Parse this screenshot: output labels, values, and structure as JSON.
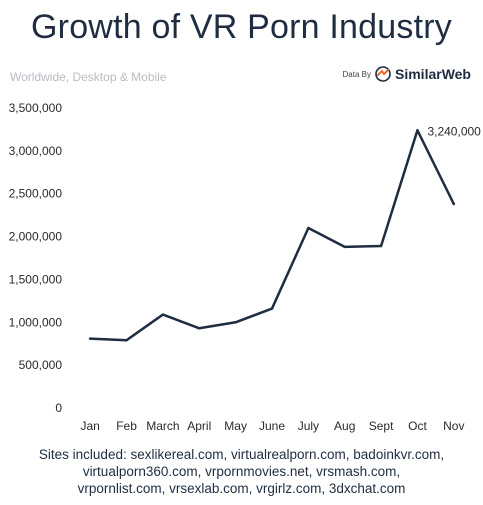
{
  "title": "Growth of VR Porn Industry",
  "subtitle": "Worldwide, Desktop & Mobile",
  "attribution": {
    "prefix": "Data By",
    "brand": "SimilarWeb",
    "logo_icon": "similarweb-logo-icon",
    "logo_color": "#f26b2b"
  },
  "chart_data": {
    "type": "line",
    "categories": [
      "Jan",
      "Feb",
      "March",
      "April",
      "May",
      "June",
      "July",
      "Aug",
      "Sept",
      "Oct",
      "Nov"
    ],
    "values": [
      810000,
      790000,
      1090000,
      930000,
      1000000,
      1160000,
      2100000,
      1880000,
      1890000,
      3240000,
      2380000
    ],
    "ylim": [
      0,
      3500000
    ],
    "yticks": [
      0,
      500000,
      1000000,
      1500000,
      2000000,
      2500000,
      3000000,
      3500000
    ],
    "ytick_labels": [
      "0",
      "500,000",
      "1,000,000",
      "1,500,000",
      "2,000,000",
      "2,500,000",
      "3,000,000",
      "3,500,000"
    ],
    "annotation": {
      "index": 9,
      "text": "3,240,000"
    },
    "line_color": "#1f2d40",
    "grid": false
  },
  "footnote": {
    "lines": [
      "Sites included: sexlikereal.com, virtualrealporn.com, badoinkvr.com,",
      "virtualporn360.com, vrpornmovies.net, vrsmash.com,",
      "vrpornlist.com, vrsexlab.com, vrgirlz.com, 3dxchat.com"
    ]
  }
}
